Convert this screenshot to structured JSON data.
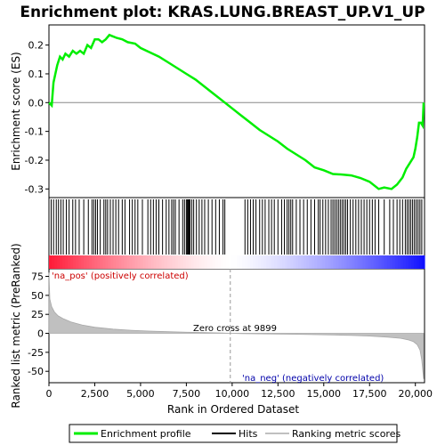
{
  "chart_data": {
    "type": "line",
    "title": "Enrichment plot: KRAS.LUNG.BREAST_UP.V1_UP",
    "xlabel": "Rank in Ordered Dataset",
    "ylabel_top": "Enrichment score (ES)",
    "ylabel_bottom": "Ranked list metric (PreRanked)",
    "xlim": [
      0,
      20500
    ],
    "es_ylim": [
      -0.33,
      0.27
    ],
    "metric_ylim": [
      -65,
      85
    ],
    "x_ticks": [
      0,
      2500,
      5000,
      7500,
      10000,
      12500,
      15000,
      17500,
      20000
    ],
    "x_tick_labels": [
      "0",
      "2,500",
      "5,000",
      "7,500",
      "10,000",
      "12,500",
      "15,000",
      "17,500",
      "20,000"
    ],
    "es_ticks": [
      -0.3,
      -0.2,
      -0.1,
      0.0,
      0.1,
      0.2
    ],
    "es_tick_labels": [
      "-0.3",
      "-0.2",
      "-0.1",
      "0.0",
      "0.1",
      "0.2"
    ],
    "metric_ticks": [
      -50,
      -25,
      0,
      25,
      50,
      75
    ],
    "metric_tick_labels": [
      "-50",
      "-25",
      "0",
      "25",
      "50",
      "75"
    ],
    "zero_cross": 9899,
    "zero_cross_label": "Zero cross at 9899",
    "pos_label": "'na_pos' (positively correlated)",
    "neg_label": "'na_neg' (negatively correlated)",
    "legend": [
      "Enrichment profile",
      "Hits",
      "Ranking metric scores"
    ],
    "es_curve": {
      "x": [
        0,
        150,
        250,
        350,
        450,
        600,
        750,
        900,
        1100,
        1300,
        1500,
        1700,
        1900,
        2100,
        2300,
        2500,
        2700,
        2900,
        3100,
        3300,
        3500,
        3700,
        4000,
        4300,
        4700,
        5000,
        5500,
        6000,
        6500,
        7000,
        7500,
        8000,
        8500,
        9000,
        9500,
        10000,
        10500,
        11000,
        11500,
        12000,
        12500,
        13000,
        13500,
        14000,
        14500,
        15000,
        15500,
        16000,
        16500,
        17000,
        17500,
        18000,
        18300,
        18700,
        19000,
        19300,
        19500,
        19700,
        19900,
        20000,
        20100,
        20200,
        20300,
        20400,
        20450
      ],
      "y": [
        0.0,
        -0.01,
        0.07,
        0.1,
        0.13,
        0.16,
        0.15,
        0.17,
        0.16,
        0.18,
        0.17,
        0.18,
        0.17,
        0.2,
        0.19,
        0.22,
        0.22,
        0.21,
        0.22,
        0.235,
        0.23,
        0.225,
        0.22,
        0.21,
        0.205,
        0.19,
        0.175,
        0.16,
        0.14,
        0.12,
        0.1,
        0.08,
        0.055,
        0.03,
        0.005,
        -0.02,
        -0.045,
        -0.07,
        -0.095,
        -0.115,
        -0.135,
        -0.16,
        -0.18,
        -0.2,
        -0.225,
        -0.235,
        -0.248,
        -0.25,
        -0.253,
        -0.262,
        -0.275,
        -0.3,
        -0.295,
        -0.3,
        -0.285,
        -0.26,
        -0.23,
        -0.21,
        -0.19,
        -0.16,
        -0.12,
        -0.07,
        -0.07,
        -0.08,
        0.0
      ]
    },
    "hits": [
      120,
      250,
      400,
      520,
      650,
      780,
      950,
      1100,
      1300,
      1450,
      1650,
      1900,
      2150,
      2350,
      2450,
      2550,
      2650,
      2800,
      3000,
      3100,
      3200,
      3350,
      3500,
      3650,
      3800,
      4000,
      4150,
      4400,
      4550,
      4700,
      4850,
      5100,
      5400,
      5550,
      5700,
      5850,
      6000,
      6200,
      6400,
      6550,
      6700,
      6800,
      6900,
      7100,
      7300,
      7400,
      7500,
      7550,
      7600,
      7650,
      7700,
      7800,
      7900,
      8050,
      8200,
      8350,
      8500,
      8700,
      8900,
      9100,
      9300,
      9500,
      9600,
      10700,
      10850,
      11000,
      11150,
      11300,
      11500,
      11650,
      11800,
      12000,
      12150,
      12300,
      12500,
      12700,
      12850,
      13000,
      13100,
      13200,
      13300,
      13500,
      13700,
      13900,
      14100,
      14300,
      14500,
      14700,
      14800,
      14950,
      15100,
      15250,
      15400,
      15500,
      15600,
      15700,
      15800,
      15900,
      16000,
      16100,
      16200,
      16300,
      16450,
      16600,
      16750,
      16900,
      17050,
      17200,
      17350,
      17500,
      17650,
      17800,
      18000,
      18300,
      18600,
      18800,
      19000,
      19150,
      19300,
      19450,
      19550,
      19650,
      19750,
      19850,
      19950,
      20050,
      20150,
      20250,
      20350
    ],
    "metric_curve": {
      "x": [
        0,
        50,
        150,
        300,
        500,
        800,
        1200,
        1800,
        2500,
        3500,
        4500,
        5500,
        6500,
        7500,
        8500,
        9500,
        9899,
        10500,
        11500,
        12500,
        13500,
        14500,
        15500,
        16500,
        17500,
        18500,
        19200,
        19600,
        19900,
        20100,
        20250,
        20350,
        20450
      ],
      "y": [
        80,
        45,
        35,
        28,
        23,
        19,
        15,
        11,
        8,
        5.5,
        4,
        3,
        2.2,
        1.5,
        1,
        0.4,
        0,
        -0.3,
        -0.7,
        -1,
        -1.3,
        -1.7,
        -2.2,
        -2.8,
        -3.6,
        -5,
        -6.5,
        -8.5,
        -11,
        -15,
        -22,
        -35,
        -60
      ]
    }
  }
}
